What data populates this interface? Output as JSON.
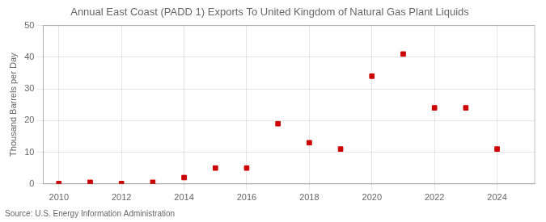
{
  "chart_data": {
    "type": "scatter",
    "title": "Annual East Coast (PADD 1) Exports To United Kingdom of Natural Gas Plant Liquids",
    "ylabel": "Thousand Barrels per Day",
    "annotations": [
      "Source: U.S. Energy Information Administration"
    ],
    "x": [
      2010,
      2011,
      2012,
      2013,
      2014,
      2015,
      2016,
      2017,
      2018,
      2019,
      2020,
      2021,
      2022,
      2023,
      2024
    ],
    "values": [
      0.1,
      0.5,
      0.1,
      0.5,
      2.0,
      5.0,
      5.0,
      19.0,
      13.0,
      11.0,
      34.0,
      41.0,
      24.0,
      24.0,
      11.0
    ],
    "color": "#cc0000",
    "marker": "square",
    "xlim": [
      2009.5,
      2025.2
    ],
    "ylim": [
      0,
      50
    ],
    "xticks": [
      2010,
      2012,
      2014,
      2016,
      2018,
      2020,
      2022,
      2024
    ],
    "yticks": [
      0,
      10,
      20,
      30,
      40,
      50
    ],
    "grid": true
  }
}
